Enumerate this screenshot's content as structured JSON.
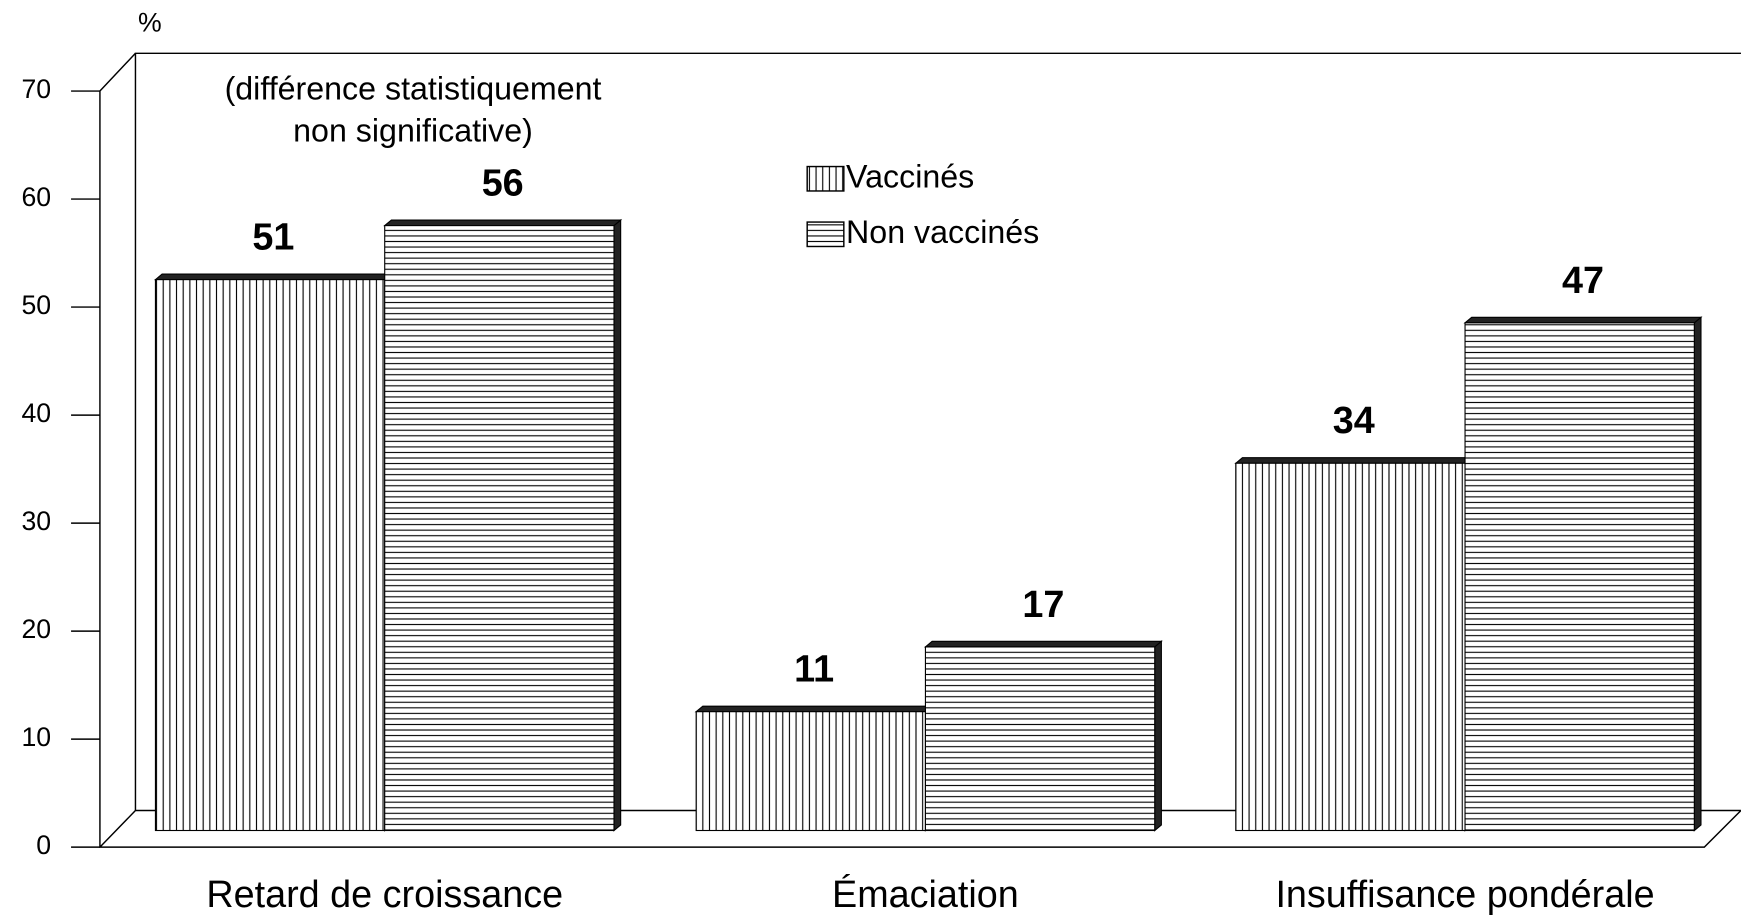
{
  "chart_data": {
    "type": "bar",
    "y_label": "%",
    "annotation": [
      "(différence statistiquement",
      "non significative)"
    ],
    "categories": [
      "Retard de croissance",
      "Émaciation",
      "Insuffisance pondérale"
    ],
    "series": [
      {
        "name": "Vaccinés",
        "color": "#000000",
        "hatch": "vertical",
        "values": [
          51,
          11,
          34
        ]
      },
      {
        "name": "Non vaccinés",
        "color": "#000000",
        "hatch": "horizontal",
        "values": [
          56,
          17,
          47
        ]
      }
    ],
    "ylim": [
      0,
      70
    ],
    "yticks": [
      0,
      10,
      20,
      30,
      40,
      50,
      60,
      70
    ],
    "grid": false
  }
}
